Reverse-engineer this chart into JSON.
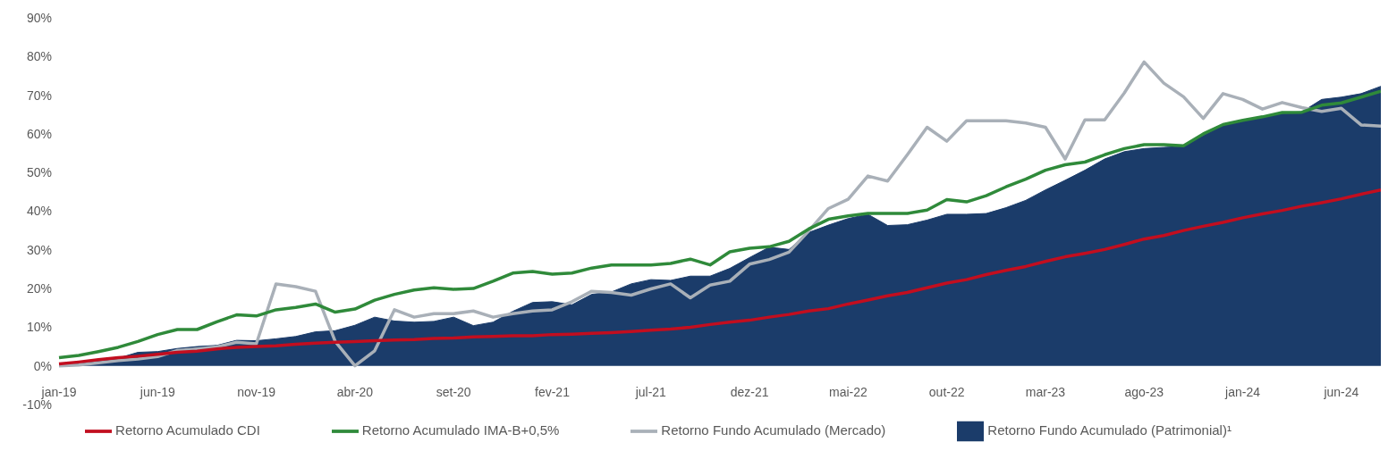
{
  "chart_data": {
    "type": "line",
    "categories": [
      "jan-19",
      null,
      null,
      null,
      null,
      "jun-19",
      null,
      null,
      null,
      null,
      "nov-19",
      null,
      null,
      null,
      null,
      "abr-20",
      null,
      null,
      null,
      null,
      "set-20",
      null,
      null,
      null,
      null,
      "fev-21",
      null,
      null,
      null,
      null,
      "jul-21",
      null,
      null,
      null,
      null,
      "dez-21",
      null,
      null,
      null,
      null,
      "mai-22",
      null,
      null,
      null,
      null,
      "out-22",
      null,
      null,
      null,
      null,
      "mar-23",
      null,
      null,
      null,
      null,
      "ago-23",
      null,
      null,
      null,
      null,
      "jan-24",
      null,
      null,
      null,
      null,
      "jun-24",
      null,
      null
    ],
    "series": [
      {
        "name": "Retorno Fundo Acumulado (Patrimonial)¹",
        "type": "area",
        "color": "#1b3c6a",
        "values": [
          0.2,
          0.5,
          1.2,
          2.0,
          3.5,
          3.7,
          4.5,
          5.0,
          5.3,
          6.6,
          6.5,
          7.0,
          7.6,
          8.8,
          9.1,
          10.5,
          12.6,
          11.6,
          11.3,
          11.5,
          12.6,
          10.4,
          11.3,
          14.1,
          16.4,
          16.6,
          15.8,
          18.5,
          19.1,
          21.2,
          22.3,
          22.1,
          23.2,
          23.2,
          25.2,
          28.0,
          30.7,
          30.1,
          34.5,
          36.4,
          38.1,
          39.2,
          36.3,
          36.5,
          37.7,
          39.2,
          39.2,
          39.4,
          40.9,
          42.8,
          45.5,
          48.0,
          50.6,
          53.5,
          55.4,
          56.2,
          56.5,
          56.8,
          59.6,
          62.3,
          63.4,
          64.4,
          65.5,
          65.7,
          68.9,
          69.5,
          70.4,
          72.3
        ]
      },
      {
        "name": "Retorno Fundo Acumulado (Mercado)",
        "color": "#a9b0b8",
        "values": [
          0.0,
          0.2,
          0.8,
          1.4,
          1.8,
          2.4,
          4.0,
          4.4,
          4.9,
          6.1,
          5.7,
          21.2,
          20.5,
          19.3,
          6.3,
          0.0,
          3.9,
          14.5,
          12.6,
          13.5,
          13.5,
          14.2,
          12.6,
          13.5,
          14.2,
          14.5,
          16.6,
          19.3,
          19.0,
          18.3,
          19.9,
          21.2,
          17.6,
          20.9,
          21.9,
          26.3,
          27.5,
          29.4,
          34.9,
          40.7,
          43.1,
          49.1,
          47.8,
          54.6,
          61.7,
          58.1,
          63.4,
          63.4,
          63.4,
          62.8,
          61.7,
          53.5,
          63.6,
          63.6,
          70.6,
          78.6,
          73.1,
          69.6,
          64.0,
          70.4,
          68.9,
          66.4,
          68.1,
          66.8,
          65.8,
          66.6,
          62.3,
          62.0
        ]
      },
      {
        "name": "Retorno Acumulado IMA-B+0,5%",
        "color": "#2f8a3a",
        "values": [
          2.1,
          2.7,
          3.7,
          4.8,
          6.3,
          8.1,
          9.4,
          9.4,
          11.4,
          13.2,
          12.9,
          14.5,
          15.1,
          16.0,
          13.9,
          14.7,
          17.0,
          18.5,
          19.6,
          20.2,
          19.8,
          20.0,
          21.9,
          24.0,
          24.4,
          23.7,
          24.0,
          25.3,
          26.1,
          26.1,
          26.1,
          26.5,
          27.6,
          26.1,
          29.5,
          30.4,
          30.8,
          32.2,
          35.4,
          37.9,
          38.8,
          39.4,
          39.4,
          39.4,
          40.3,
          43.0,
          42.4,
          44.0,
          46.3,
          48.3,
          50.6,
          52.0,
          52.7,
          54.6,
          56.2,
          57.2,
          57.2,
          56.9,
          60.0,
          62.4,
          63.5,
          64.4,
          65.5,
          65.6,
          67.4,
          68.0,
          69.5,
          71.0
        ]
      },
      {
        "name": "Retorno Acumulado CDI",
        "color": "#c20e1f",
        "values": [
          0.5,
          1.0,
          1.6,
          2.1,
          2.5,
          3.0,
          3.5,
          3.8,
          4.4,
          4.8,
          5.0,
          5.2,
          5.6,
          5.9,
          6.1,
          6.3,
          6.5,
          6.7,
          6.8,
          7.1,
          7.2,
          7.5,
          7.6,
          7.8,
          7.8,
          8.1,
          8.2,
          8.4,
          8.6,
          8.9,
          9.2,
          9.5,
          10.0,
          10.7,
          11.3,
          11.8,
          12.6,
          13.3,
          14.2,
          14.8,
          16.0,
          17.0,
          18.1,
          19.0,
          20.2,
          21.4,
          22.3,
          23.6,
          24.7,
          25.7,
          27.0,
          28.2,
          29.1,
          30.1,
          31.4,
          32.8,
          33.7,
          35.0,
          36.1,
          37.1,
          38.3,
          39.3,
          40.2,
          41.3,
          42.2,
          43.2,
          44.4,
          45.5
        ]
      }
    ],
    "ylim": [
      -10,
      90
    ],
    "yticks": [
      {
        "value": -10,
        "label": "-10%"
      },
      {
        "value": 0,
        "label": "0%"
      },
      {
        "value": 10,
        "label": "10%"
      },
      {
        "value": 20,
        "label": "20%"
      },
      {
        "value": 30,
        "label": "30%"
      },
      {
        "value": 40,
        "label": "40%"
      },
      {
        "value": 50,
        "label": "50%"
      },
      {
        "value": 60,
        "label": "60%"
      },
      {
        "value": 70,
        "label": "70%"
      },
      {
        "value": 80,
        "label": "80%"
      },
      {
        "value": 90,
        "label": "90%"
      }
    ],
    "legend": "bottom"
  }
}
